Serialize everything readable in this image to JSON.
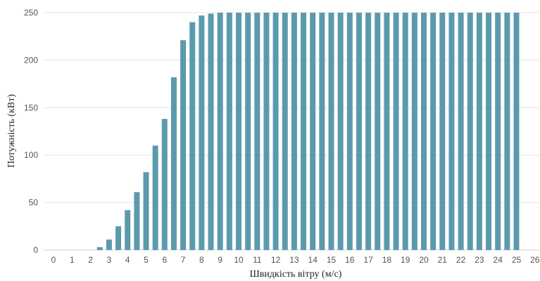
{
  "chart_data": {
    "type": "bar",
    "xlabel": "Швидкість вітру (м/с)",
    "ylabel": "Потужність (кВт)",
    "xlim": [
      0,
      26
    ],
    "ylim": [
      0,
      250
    ],
    "x_ticks": [
      0,
      1,
      2,
      3,
      4,
      5,
      6,
      7,
      8,
      9,
      10,
      11,
      12,
      13,
      14,
      15,
      16,
      17,
      18,
      19,
      20,
      21,
      22,
      23,
      24,
      25,
      26
    ],
    "y_ticks": [
      0,
      50,
      100,
      150,
      200,
      250
    ],
    "grid": "horizontal",
    "bar_color": "#5b9aad",
    "x": [
      2.5,
      3,
      3.5,
      4,
      4.5,
      5,
      5.5,
      6,
      6.5,
      7,
      7.5,
      8,
      8.5,
      9,
      9.5,
      10,
      10.5,
      11,
      11.5,
      12,
      12.5,
      13,
      13.5,
      14,
      14.5,
      15,
      15.5,
      16,
      16.5,
      17,
      17.5,
      18,
      18.5,
      19,
      19.5,
      20,
      20.5,
      21,
      21.5,
      22,
      22.5,
      23,
      23.5,
      24,
      24.5,
      25
    ],
    "values": [
      3,
      11,
      25,
      42,
      61,
      82,
      110,
      138,
      182,
      221,
      240,
      247,
      249,
      250,
      250,
      250,
      250,
      250,
      250,
      250,
      250,
      250,
      250,
      250,
      250,
      250,
      250,
      250,
      250,
      250,
      250,
      250,
      250,
      250,
      250,
      250,
      250,
      250,
      250,
      250,
      250,
      250,
      250,
      250,
      250,
      250
    ]
  }
}
